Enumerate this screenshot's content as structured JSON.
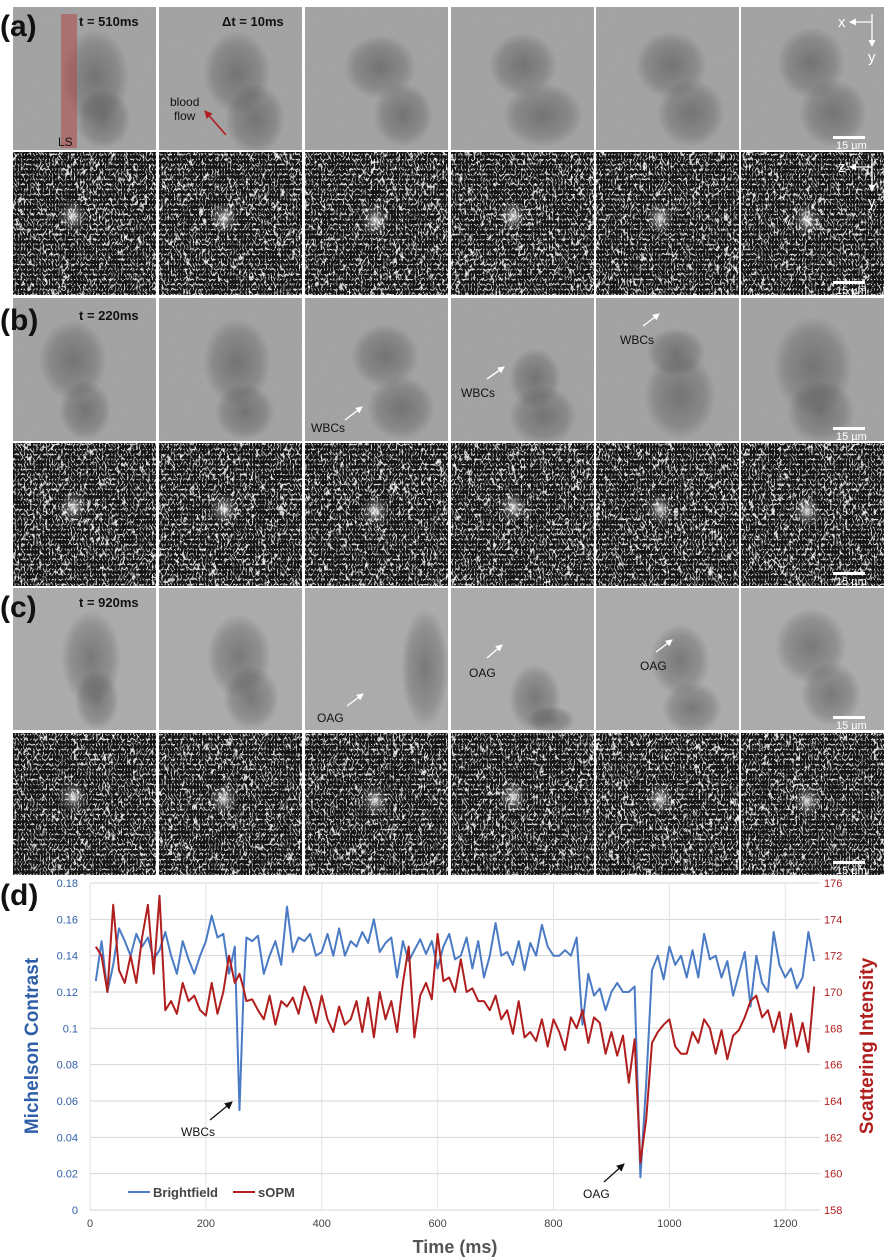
{
  "figure": {
    "panels": [
      {
        "label": "(a)",
        "time_label": "t = 510ms",
        "dt_label": "Δt = 10ms"
      },
      {
        "label": "(b)",
        "time_label": "t = 220ms"
      },
      {
        "label": "(c)",
        "time_label": "t = 920ms"
      },
      {
        "label": "(d)"
      }
    ],
    "annotations": {
      "ls": "LS",
      "blood_flow": [
        "blood",
        "flow"
      ],
      "wbcs": "WBCs",
      "oag": "OAG"
    },
    "axes_brightfield": {
      "x": "x",
      "y": "y"
    },
    "axes_sopm": {
      "x": "z'",
      "y": "y"
    },
    "scale_bar": "15 µm",
    "colors": {
      "brightfield": "#4a7bc4",
      "sopm": "#b01e1e",
      "ls_overlay": "#b04848",
      "arrow_red": "#b01e1e"
    }
  },
  "chart_data": {
    "type": "line",
    "xlabel": "Time (ms)",
    "ylabel_left": "Michelson Contrast",
    "ylabel_right": "Scattering Intensity",
    "xlim": [
      0,
      1260
    ],
    "ylim_left": [
      0,
      0.18
    ],
    "ylim_right": [
      158,
      176
    ],
    "x_ticks": [
      "0",
      "200",
      "400",
      "600",
      "800",
      "1000",
      "1200"
    ],
    "y_ticks_left": [
      "0",
      "0.02",
      "0.04",
      "0.06",
      "0.08",
      "0.1",
      "0.12",
      "0.14",
      "0.16",
      "0.18"
    ],
    "y_ticks_right": [
      "158",
      "160",
      "162",
      "164",
      "166",
      "168",
      "170",
      "172",
      "174",
      "176"
    ],
    "grid": true,
    "legend_position": "bottom-left",
    "annotations": [
      {
        "text": "WBCs",
        "x": 258,
        "y": 0.055
      },
      {
        "text": "OAG",
        "x": 950,
        "y": 0.018
      }
    ],
    "series": [
      {
        "name": "Brightfield",
        "axis": "left",
        "x": [
          10,
          20,
          30,
          40,
          50,
          60,
          70,
          80,
          90,
          100,
          110,
          120,
          130,
          140,
          150,
          160,
          170,
          180,
          190,
          200,
          210,
          220,
          230,
          240,
          250,
          258,
          265,
          270,
          280,
          290,
          300,
          310,
          320,
          330,
          340,
          350,
          360,
          370,
          380,
          390,
          400,
          410,
          420,
          430,
          440,
          450,
          460,
          470,
          480,
          490,
          500,
          510,
          520,
          530,
          540,
          550,
          560,
          570,
          580,
          590,
          600,
          610,
          620,
          630,
          640,
          650,
          660,
          670,
          680,
          690,
          700,
          710,
          720,
          730,
          740,
          750,
          760,
          770,
          780,
          790,
          800,
          810,
          820,
          830,
          840,
          850,
          860,
          870,
          880,
          890,
          900,
          910,
          920,
          930,
          940,
          950,
          960,
          970,
          980,
          990,
          1000,
          1010,
          1020,
          1030,
          1040,
          1050,
          1060,
          1070,
          1080,
          1090,
          1100,
          1110,
          1120,
          1130,
          1140,
          1150,
          1160,
          1170,
          1180,
          1190,
          1200,
          1210,
          1220,
          1230,
          1240,
          1250
        ],
        "y": [
          0.126,
          0.148,
          0.12,
          0.135,
          0.155,
          0.148,
          0.14,
          0.152,
          0.145,
          0.15,
          0.138,
          0.143,
          0.153,
          0.14,
          0.13,
          0.148,
          0.138,
          0.13,
          0.14,
          0.148,
          0.162,
          0.15,
          0.152,
          0.13,
          0.145,
          0.055,
          0.12,
          0.15,
          0.148,
          0.151,
          0.13,
          0.14,
          0.148,
          0.135,
          0.167,
          0.142,
          0.15,
          0.148,
          0.152,
          0.14,
          0.142,
          0.152,
          0.14,
          0.155,
          0.14,
          0.148,
          0.145,
          0.153,
          0.147,
          0.16,
          0.142,
          0.147,
          0.15,
          0.128,
          0.148,
          0.137,
          0.143,
          0.149,
          0.141,
          0.148,
          0.133,
          0.145,
          0.152,
          0.138,
          0.14,
          0.15,
          0.133,
          0.148,
          0.128,
          0.14,
          0.158,
          0.14,
          0.142,
          0.135,
          0.148,
          0.132,
          0.147,
          0.14,
          0.157,
          0.145,
          0.14,
          0.14,
          0.143,
          0.14,
          0.15,
          0.102,
          0.13,
          0.118,
          0.122,
          0.11,
          0.12,
          0.125,
          0.12,
          0.12,
          0.123,
          0.018,
          0.07,
          0.132,
          0.14,
          0.127,
          0.145,
          0.135,
          0.14,
          0.128,
          0.143,
          0.128,
          0.152,
          0.138,
          0.14,
          0.128,
          0.137,
          0.118,
          0.13,
          0.142,
          0.112,
          0.14,
          0.125,
          0.12,
          0.153,
          0.135,
          0.128,
          0.133,
          0.122,
          0.128,
          0.153,
          0.137
        ],
        "color": "#4a7bc4"
      },
      {
        "name": "sOPM",
        "axis": "right",
        "x": [
          10,
          20,
          30,
          40,
          50,
          60,
          70,
          80,
          90,
          100,
          110,
          120,
          130,
          140,
          150,
          160,
          170,
          180,
          190,
          200,
          210,
          220,
          230,
          240,
          250,
          258,
          265,
          270,
          280,
          290,
          300,
          310,
          320,
          330,
          340,
          350,
          360,
          370,
          380,
          390,
          400,
          410,
          420,
          430,
          440,
          450,
          460,
          470,
          480,
          490,
          500,
          510,
          520,
          530,
          540,
          550,
          560,
          570,
          580,
          590,
          600,
          610,
          620,
          630,
          640,
          650,
          660,
          670,
          680,
          690,
          700,
          710,
          720,
          730,
          740,
          750,
          760,
          770,
          780,
          790,
          800,
          810,
          820,
          830,
          840,
          850,
          860,
          870,
          880,
          890,
          900,
          910,
          920,
          930,
          940,
          950,
          960,
          970,
          980,
          990,
          1000,
          1010,
          1020,
          1030,
          1040,
          1050,
          1060,
          1070,
          1080,
          1090,
          1100,
          1110,
          1120,
          1130,
          1140,
          1150,
          1160,
          1170,
          1180,
          1190,
          1200,
          1210,
          1220,
          1230,
          1240,
          1250
        ],
        "y": [
          172.5,
          172,
          170,
          174.8,
          171.2,
          170.5,
          172,
          170.5,
          173,
          174.8,
          171,
          175.3,
          169,
          169.5,
          168.8,
          170.5,
          169.5,
          169.8,
          169,
          168.7,
          170.5,
          168.8,
          170,
          172,
          170.5,
          171,
          170.2,
          169.5,
          169.6,
          169,
          168.5,
          169.8,
          168.2,
          169.5,
          169.2,
          169.7,
          168.8,
          170.3,
          169.5,
          168.3,
          169.8,
          168.5,
          167.8,
          169.2,
          168.2,
          168.5,
          169.5,
          167.8,
          169.7,
          167.5,
          170,
          168.5,
          169.5,
          167.8,
          170.5,
          172.5,
          167.5,
          169.8,
          170.5,
          169.6,
          173.2,
          170.6,
          170.8,
          170,
          171.8,
          170,
          170.2,
          169.5,
          169.5,
          169,
          169.8,
          168.5,
          169,
          167.7,
          169.5,
          167.5,
          167.8,
          167.3,
          168.5,
          167,
          168.5,
          167.8,
          166.8,
          168.6,
          168,
          169,
          167.2,
          168.6,
          168.3,
          166.6,
          167.8,
          166.5,
          167.6,
          165,
          167.4,
          160.6,
          163,
          167.2,
          167.8,
          168.2,
          168.5,
          167,
          166.6,
          166.6,
          167.8,
          167.2,
          168.5,
          168,
          166.6,
          167.9,
          166.3,
          167.6,
          167.9,
          168.6,
          169.5,
          169.8,
          168.6,
          169,
          167.8,
          168.9,
          166.9,
          168.8,
          167,
          168.3,
          166.7,
          170.3
        ],
        "color": "#b01e1e"
      }
    ]
  }
}
